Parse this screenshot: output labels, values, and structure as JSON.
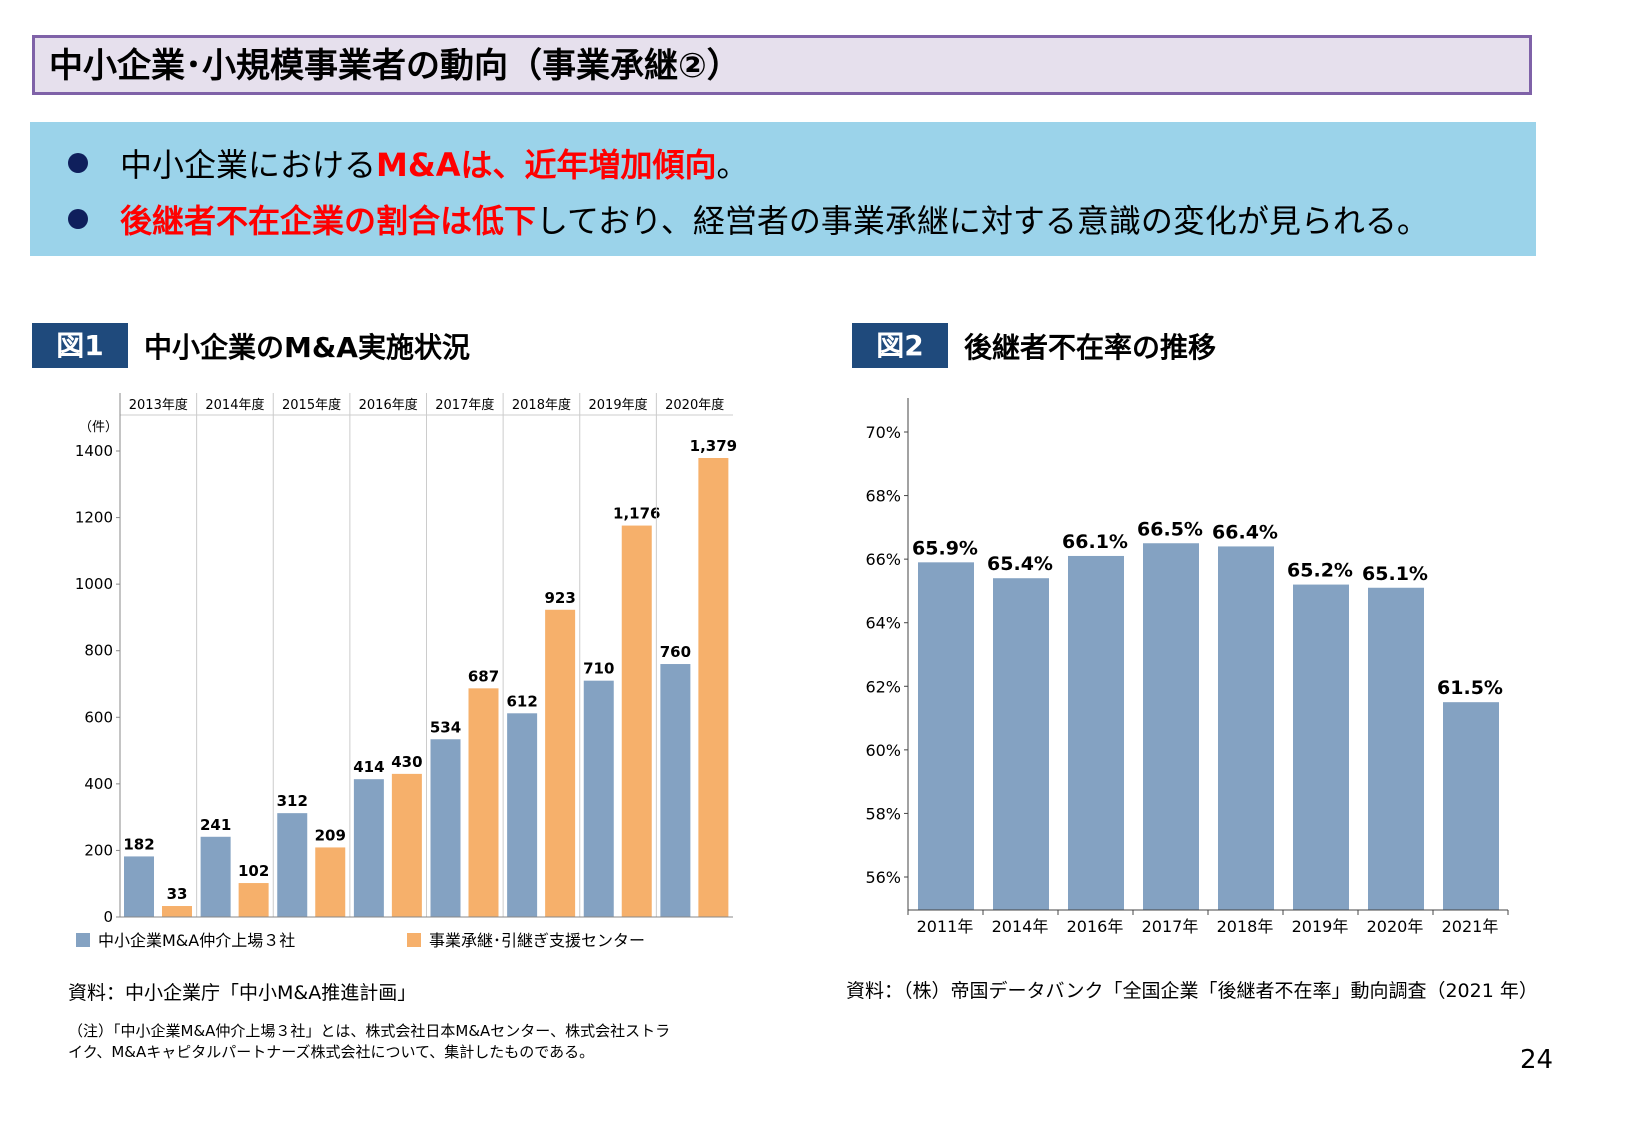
{
  "title": "中小企業･小規模事業者の動向（事業承継②）",
  "summary": {
    "b1": {
      "plain": "中小企業における",
      "red": "M&Aは、近年増加傾向",
      "tail": "。"
    },
    "b2": {
      "red": "後継者不在企業の割合は低下",
      "tail": "しており、経営者の事業承継に対する意識の変化が見られる。"
    }
  },
  "fig1": {
    "tag": "図1",
    "title": "中小企業のM&A実施状況",
    "source": "資料：中小企業庁「中小M&A推進計画」",
    "note1": "（注）「中小企業M&A仲介上場３社」とは、株式会社日本M&Aセンター、株式会社ストラ",
    "note2": "イク、M&Aキャピタルパートナーズ株式会社について、集計したものである。"
  },
  "fig2": {
    "tag": "図2",
    "title": "後継者不在率の推移",
    "source": "資料：（株）帝国データバンク「全国企業「後継者不在率」動向調査（2021 年）"
  },
  "page_number": "24",
  "chart_data": [
    {
      "type": "bar",
      "categories": [
        "2013年度",
        "2014年度",
        "2015年度",
        "2016年度",
        "2017年度",
        "2018年度",
        "2019年度",
        "2020年度"
      ],
      "unit_label": "（件）",
      "ylim": [
        0,
        1400
      ],
      "yticks": [
        0,
        200,
        400,
        600,
        800,
        1000,
        1200,
        1400
      ],
      "legend_placement": "bottom",
      "series": [
        {
          "name": "中小企業M&A仲介上場３社",
          "color": "#84a2c2",
          "values": [
            182,
            241,
            312,
            414,
            534,
            612,
            710,
            760
          ],
          "labels": [
            "182",
            "241",
            "312",
            "414",
            "534",
            "612",
            "710",
            "760"
          ]
        },
        {
          "name": "事業承継･引継ぎ支援センター",
          "color": "#f6b06b",
          "values": [
            33,
            102,
            209,
            430,
            687,
            923,
            1176,
            1379
          ],
          "labels": [
            "33",
            "102",
            "209",
            "430",
            "687",
            "923",
            "1,176",
            "1,379"
          ]
        }
      ]
    },
    {
      "type": "bar",
      "categories": [
        "2011年",
        "2014年",
        "2016年",
        "2017年",
        "2018年",
        "2019年",
        "2020年",
        "2021年"
      ],
      "ylim": [
        55,
        71
      ],
      "yticks": [
        "56%",
        "58%",
        "60%",
        "62%",
        "64%",
        "66%",
        "68%",
        "70%"
      ],
      "ytick_values": [
        56,
        58,
        60,
        62,
        64,
        66,
        68,
        70
      ],
      "series": [
        {
          "color": "#84a2c2",
          "values": [
            65.9,
            65.4,
            66.1,
            66.5,
            66.4,
            65.2,
            65.1,
            61.5
          ],
          "labels": [
            "65.9%",
            "65.4%",
            "66.1%",
            "66.5%",
            "66.4%",
            "65.2%",
            "65.1%",
            "61.5%"
          ]
        }
      ]
    }
  ]
}
